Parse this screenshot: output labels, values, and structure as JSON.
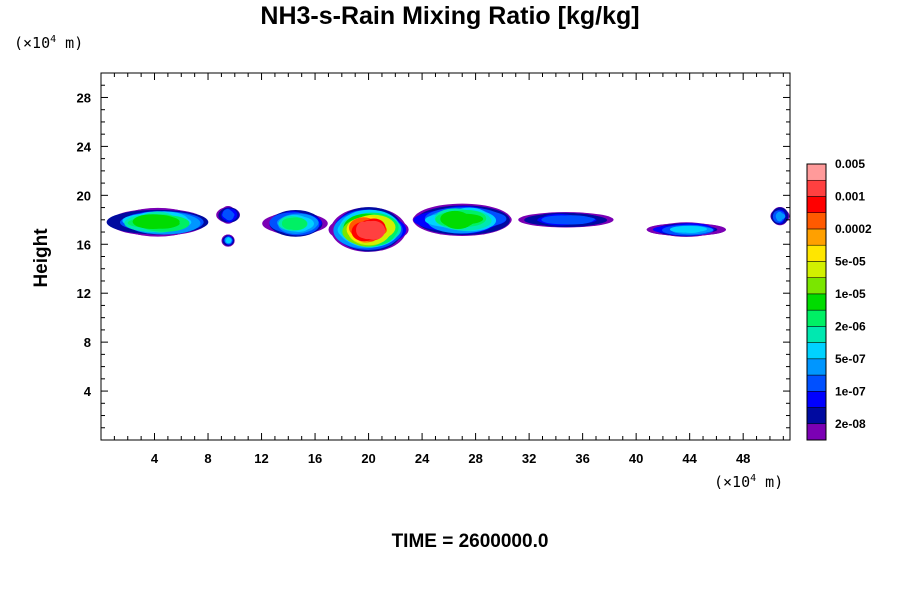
{
  "chart_data": {
    "type": "heatmap",
    "title": "NH3-s-Rain Mixing Ratio [kg/kg]",
    "ylabel": "Height",
    "xlabel": "",
    "x_unit": "(×10⁴ m)",
    "y_unit": "(×10⁴ m)",
    "x_unit_prefix": "(×10",
    "x_unit_exp": "4",
    "x_unit_suffix": " m)",
    "y_unit_prefix": "(×10",
    "y_unit_exp": "4",
    "y_unit_suffix": " m)",
    "xlim": [
      0,
      51.5
    ],
    "ylim": [
      0,
      30
    ],
    "xticks": [
      4,
      8,
      12,
      16,
      20,
      24,
      28,
      32,
      36,
      40,
      44,
      48
    ],
    "yticks": [
      4,
      8,
      12,
      16,
      20,
      24,
      28
    ],
    "colorbar": {
      "colors": [
        "#7b00b4",
        "#000aa0",
        "#0000ff",
        "#0050ff",
        "#0096ff",
        "#00d2ff",
        "#00e8b0",
        "#00f064",
        "#00dc00",
        "#7ae600",
        "#d2f000",
        "#ffe600",
        "#ffa000",
        "#ff5a00",
        "#ff0000",
        "#ff4040",
        "#ff9a9a"
      ],
      "labels": [
        "2e-08",
        "1e-07",
        "5e-07",
        "2e-06",
        "1e-05",
        "5e-05",
        "0.0002",
        "0.001",
        "0.005"
      ],
      "label_bin_index": [
        1,
        3,
        5,
        7,
        9,
        11,
        13,
        15,
        17
      ]
    },
    "features": [
      {
        "x_range": [
          0,
          8.5
        ],
        "y_center": 17.8,
        "thickness": 2.6,
        "peak_level": 8
      },
      {
        "x_range": [
          8.5,
          10.5
        ],
        "y_center": 18.4,
        "thickness": 1.6,
        "peak_level": 3
      },
      {
        "x_range": [
          9,
          10
        ],
        "y_center": 16.3,
        "thickness": 1.0,
        "peak_level": 5
      },
      {
        "x_range": [
          12,
          17
        ],
        "y_center": 17.7,
        "thickness": 2.4,
        "peak_level": 7
      },
      {
        "x_range": [
          17,
          23
        ],
        "y_center": 17.2,
        "thickness": 3.8,
        "peak_level": 15
      },
      {
        "x_range": [
          23,
          31
        ],
        "y_center": 18.0,
        "thickness": 2.8,
        "peak_level": 8
      },
      {
        "x_range": [
          31,
          38.5
        ],
        "y_center": 18.0,
        "thickness": 1.4,
        "peak_level": 3
      },
      {
        "x_range": [
          40.5,
          47
        ],
        "y_center": 17.2,
        "thickness": 1.3,
        "peak_level": 5
      },
      {
        "x_range": [
          50,
          51.5
        ],
        "y_center": 18.3,
        "thickness": 1.6,
        "peak_level": 4
      }
    ]
  },
  "time_label": "TIME = 2600000.0"
}
